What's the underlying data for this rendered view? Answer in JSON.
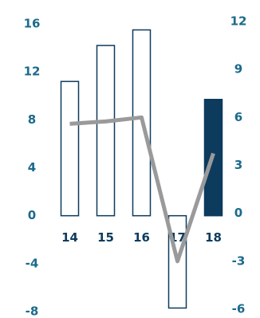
{
  "chart_data": {
    "type": "bar_line",
    "categories": [
      "14",
      "15",
      "16",
      "17",
      "18"
    ],
    "series": [
      {
        "type": "bar",
        "color": "#0d3b5e",
        "filled": [
          false,
          false,
          false,
          false,
          true
        ],
        "values": [
          11.2,
          14.2,
          15.5,
          -7.7,
          9.7
        ]
      },
      {
        "type": "line",
        "axis": "y2",
        "color": "#9a9a9a",
        "values": [
          5.75,
          5.9,
          6.15,
          -2.85,
          3.9
        ]
      }
    ],
    "ylim": [
      -8,
      16
    ],
    "yticks": [
      -8,
      -4,
      0,
      4,
      8,
      12,
      16
    ],
    "y2lim": [
      -6,
      12
    ],
    "y2ticks": [
      -6,
      -3,
      0,
      3,
      6,
      9,
      12
    ]
  }
}
